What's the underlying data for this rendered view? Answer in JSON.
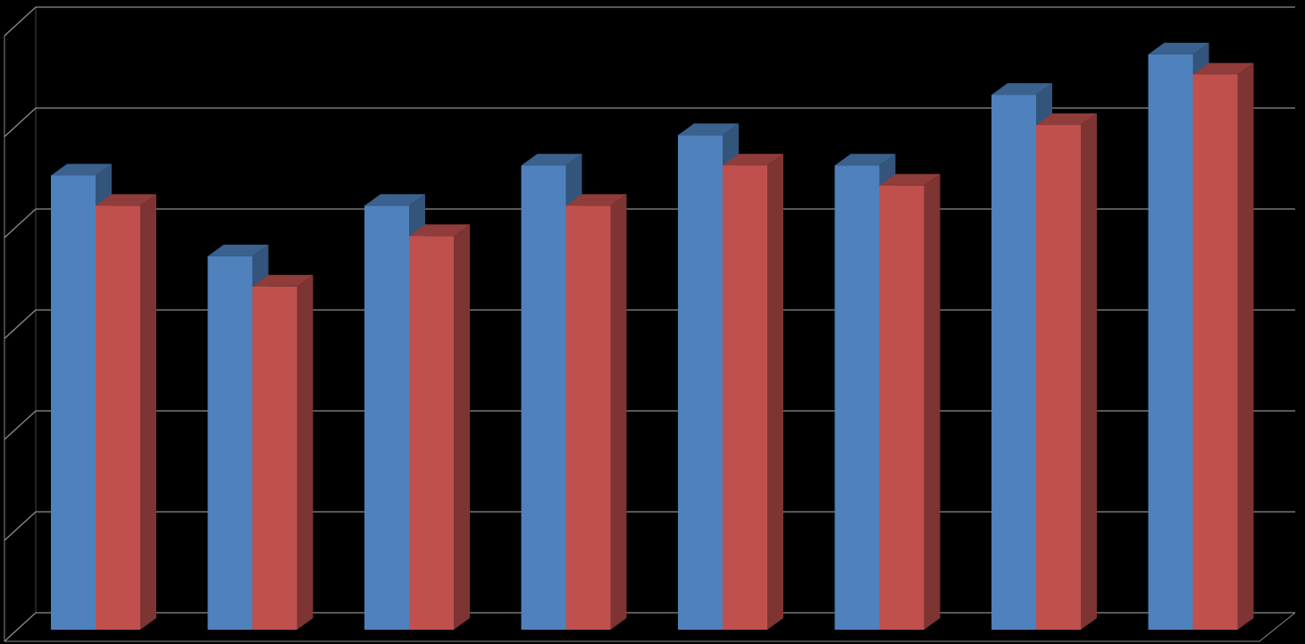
{
  "chart_data": {
    "type": "bar3d",
    "categories": [
      null,
      null,
      null,
      null,
      null,
      null,
      null,
      null
    ],
    "series": [
      {
        "color": "#4f81bd",
        "values": [
          4.5,
          3.7,
          4.2,
          4.6,
          4.9,
          4.6,
          5.3,
          5.7
        ]
      },
      {
        "color": "#c0504d",
        "values": [
          4.2,
          3.4,
          3.9,
          4.2,
          4.6,
          4.4,
          5.0,
          5.5
        ]
      }
    ],
    "ylim": [
      0,
      6
    ],
    "yticks": [
      0,
      1,
      2,
      3,
      4,
      5,
      6
    ],
    "grid": true
  }
}
